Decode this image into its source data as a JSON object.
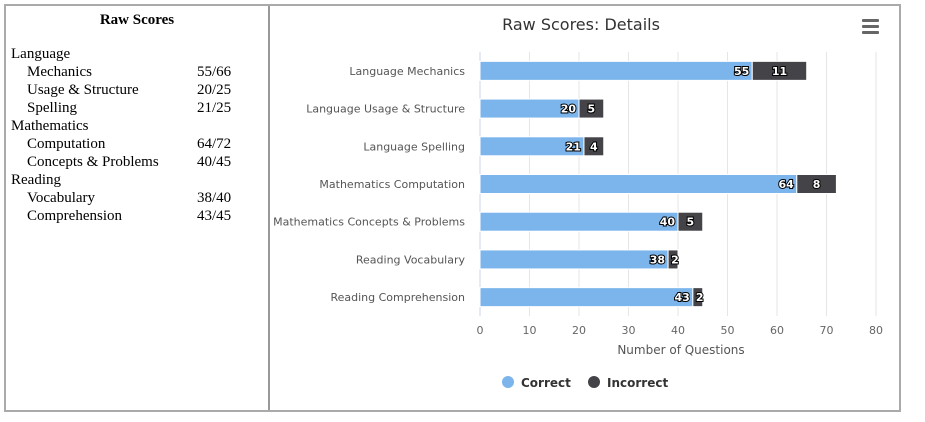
{
  "left_panel": {
    "title": "Raw Scores",
    "groups": [
      {
        "name": "Language",
        "items": [
          {
            "label": "Mechanics",
            "score": "55/66"
          },
          {
            "label": "Usage & Structure",
            "score": "20/25"
          },
          {
            "label": "Spelling",
            "score": "21/25"
          }
        ]
      },
      {
        "name": "Mathematics",
        "items": [
          {
            "label": "Computation",
            "score": "64/72"
          },
          {
            "label": "Concepts & Problems",
            "score": "40/45"
          }
        ]
      },
      {
        "name": "Reading",
        "items": [
          {
            "label": "Vocabulary",
            "score": "38/40"
          },
          {
            "label": "Comprehension",
            "score": "43/45"
          }
        ]
      }
    ]
  },
  "menu_icon": "hamburger-menu-icon",
  "chart_data": {
    "type": "bar",
    "orientation": "horizontal",
    "stacked": true,
    "title": "Raw Scores: Details",
    "xlabel": "Number of Questions",
    "xlim": [
      0,
      80
    ],
    "xticks": [
      "0",
      "10",
      "20",
      "30",
      "40",
      "50",
      "60",
      "70",
      "80"
    ],
    "grid": true,
    "legend": "bottom",
    "categories": [
      "Language Mechanics",
      "Language Usage & Structure",
      "Language Spelling",
      "Mathematics Computation",
      "Mathematics Concepts & Problems",
      "Reading Vocabulary",
      "Reading Comprehension"
    ],
    "series": [
      {
        "name": "Correct",
        "color": "#7cb5ec",
        "values": [
          55,
          20,
          21,
          64,
          40,
          38,
          43
        ]
      },
      {
        "name": "Incorrect",
        "color": "#434348",
        "values": [
          11,
          5,
          4,
          8,
          5,
          2,
          2
        ]
      }
    ]
  }
}
